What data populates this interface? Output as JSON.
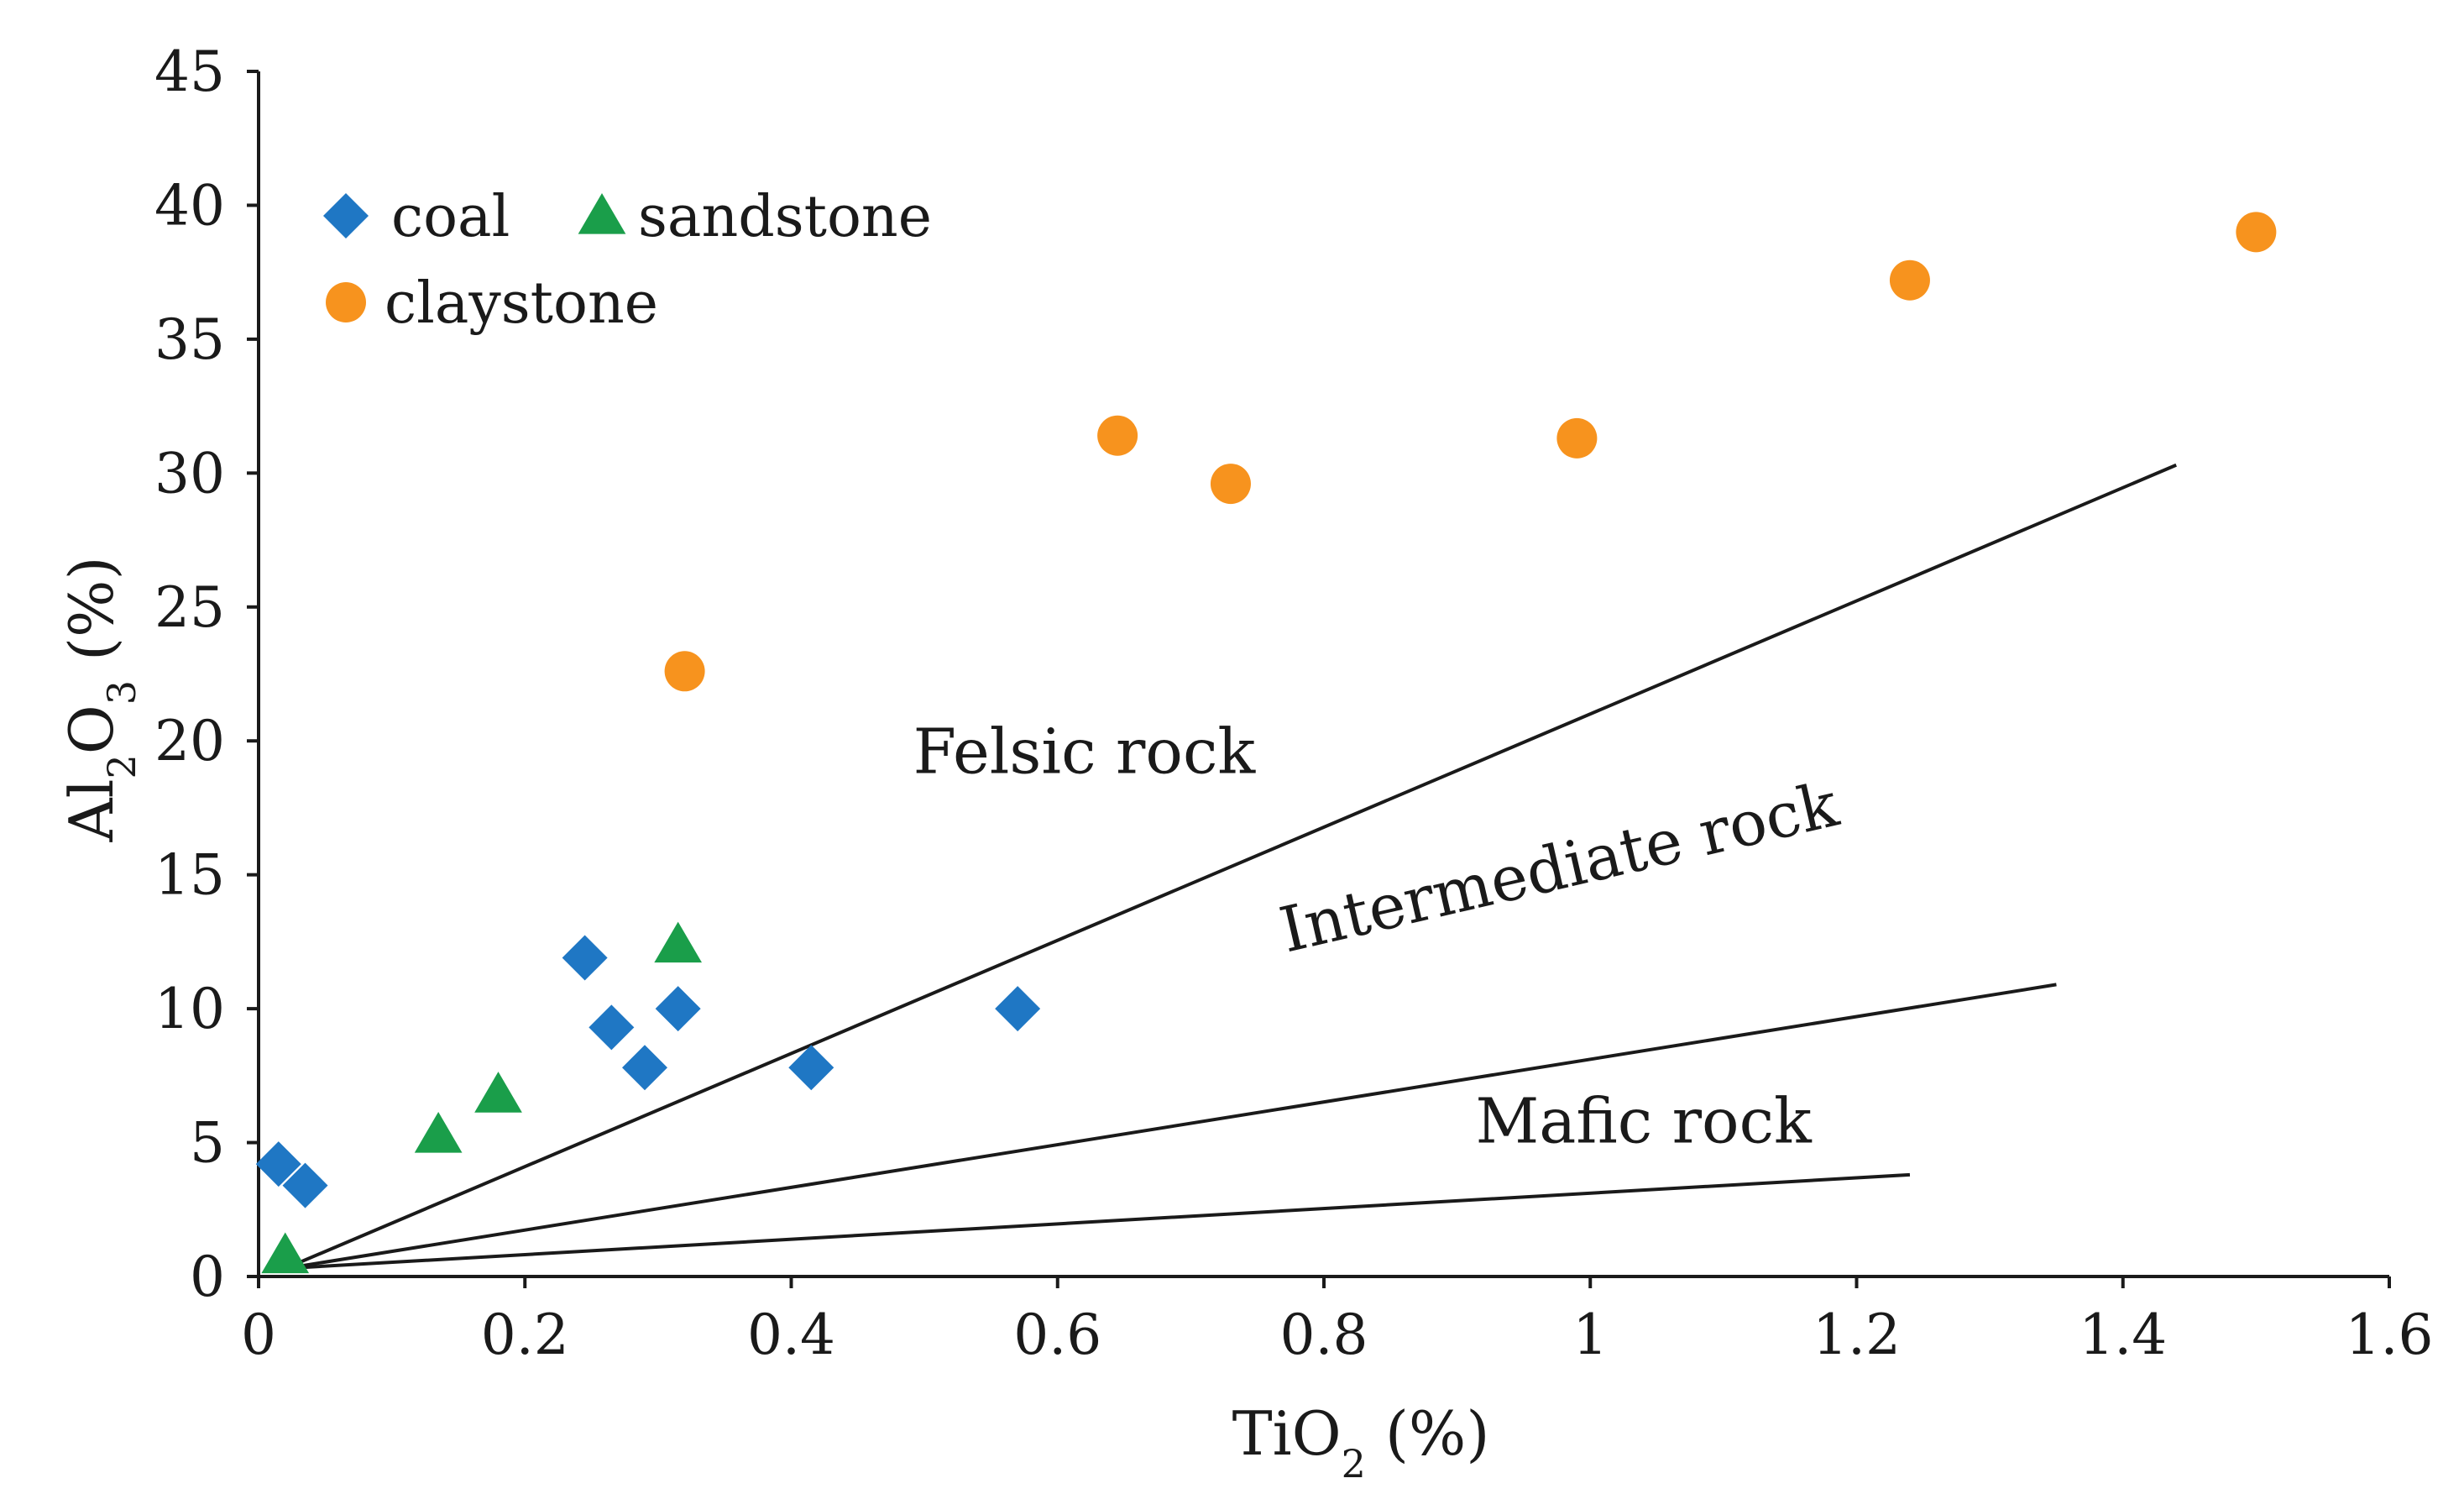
{
  "chart_data": {
    "type": "scatter",
    "title": "",
    "xlabel": "TiO2 (%)",
    "ylabel": "Al2O3 (%)",
    "xlim": [
      0,
      1.6
    ],
    "ylim": [
      0,
      45
    ],
    "xticks": [
      "0",
      "0.2",
      "0.4",
      "0.6",
      "0.8",
      "1",
      "1.2",
      "1.4",
      "1.6"
    ],
    "yticks": [
      "0",
      "5",
      "10",
      "15",
      "20",
      "25",
      "30",
      "35",
      "40",
      "45"
    ],
    "xtick_values": [
      0,
      0.2,
      0.4,
      0.6,
      0.8,
      1.0,
      1.2,
      1.4,
      1.6
    ],
    "ytick_values": [
      0,
      5,
      10,
      15,
      20,
      25,
      30,
      35,
      40,
      45
    ],
    "grid": false,
    "legend_position": "top-left",
    "series": [
      {
        "name": "coal",
        "marker": "diamond",
        "color": "#1f77c4",
        "points": [
          [
            0.015,
            4.2
          ],
          [
            0.035,
            3.4
          ],
          [
            0.245,
            11.9
          ],
          [
            0.265,
            9.3
          ],
          [
            0.29,
            7.8
          ],
          [
            0.315,
            10.0
          ],
          [
            0.415,
            7.8
          ],
          [
            0.57,
            10.0
          ]
        ]
      },
      {
        "name": "sandstone",
        "marker": "triangle",
        "color": "#1a9e4a",
        "points": [
          [
            0.02,
            0.8
          ],
          [
            0.135,
            5.3
          ],
          [
            0.18,
            6.8
          ],
          [
            0.315,
            12.4
          ]
        ]
      },
      {
        "name": "claystone",
        "marker": "circle",
        "color": "#f7931e",
        "points": [
          [
            0.32,
            22.6
          ],
          [
            0.645,
            31.4
          ],
          [
            0.73,
            29.6
          ],
          [
            0.99,
            31.3
          ],
          [
            1.24,
            37.2
          ],
          [
            1.5,
            39.0
          ]
        ]
      }
    ],
    "boundary_lines": [
      {
        "from": [
          0.02,
          0.3
        ],
        "to": [
          1.44,
          30.3
        ]
      },
      {
        "from": [
          0.02,
          0.3
        ],
        "to": [
          1.35,
          10.9
        ]
      },
      {
        "from": [
          0.02,
          0.3
        ],
        "to": [
          1.24,
          3.8
        ]
      }
    ],
    "annotations": [
      {
        "text": "Felsic rock",
        "x": 0.62,
        "y": 18.8,
        "rotate": 0
      },
      {
        "text": "Intermediate rock",
        "x": 0.98,
        "y": 14.5,
        "rotate": -13
      },
      {
        "text": "Mafic rock",
        "x": 1.04,
        "y": 5.0,
        "rotate": 0
      }
    ],
    "legend": [
      {
        "name": "coal",
        "marker": "diamond",
        "color": "#1f77c4"
      },
      {
        "name": "sandstone",
        "marker": "triangle",
        "color": "#1a9e4a"
      },
      {
        "name": "claystone",
        "marker": "circle",
        "color": "#f7931e"
      }
    ]
  }
}
